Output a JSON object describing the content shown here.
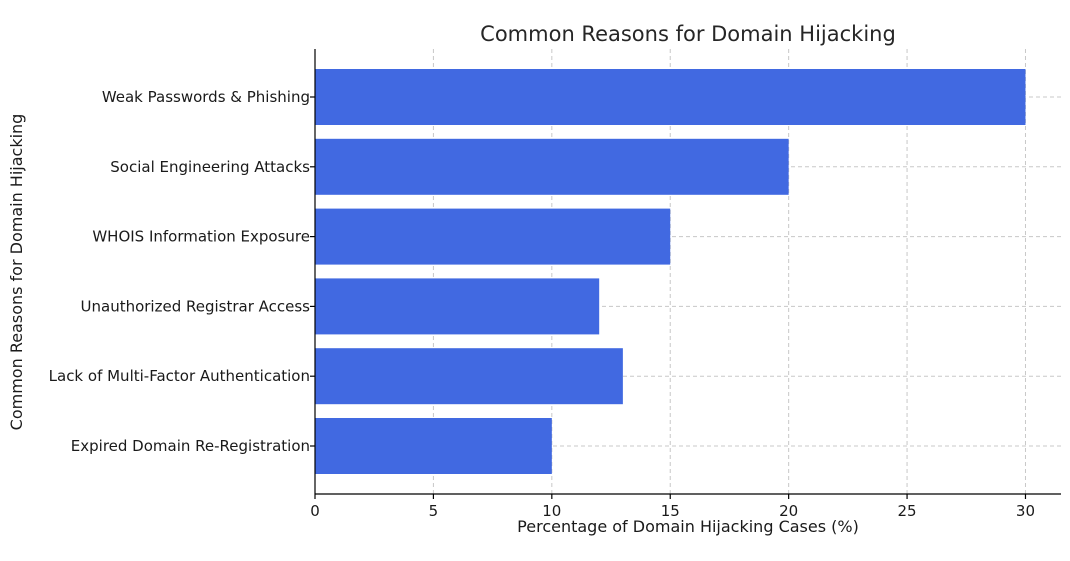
{
  "chart_data": {
    "type": "bar",
    "orientation": "horizontal",
    "title": "Common Reasons for Domain Hijacking",
    "xlabel": "Percentage of Domain Hijacking Cases (%)",
    "ylabel": "Common Reasons for Domain Hijacking",
    "categories": [
      "Weak Passwords & Phishing",
      "Social Engineering Attacks",
      "WHOIS Information Exposure",
      "Unauthorized Registrar Access",
      "Lack of Multi-Factor Authentication",
      "Expired Domain Re-Registration"
    ],
    "values": [
      30,
      20,
      15,
      12,
      13,
      10
    ],
    "xlim": [
      0,
      31.5
    ],
    "xticks": [
      0,
      5,
      10,
      15,
      20,
      25,
      30
    ],
    "grid": true,
    "bar_color": "#4169e1"
  }
}
